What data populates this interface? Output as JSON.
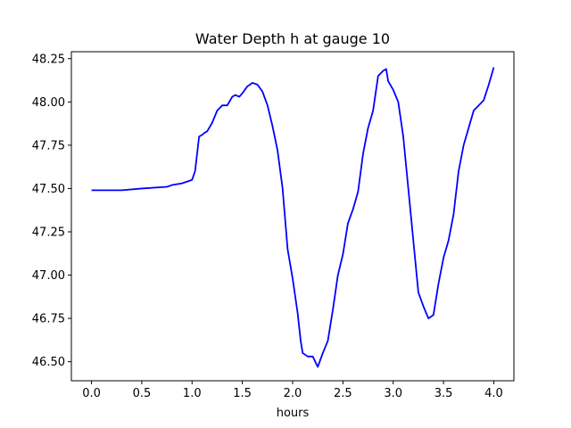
{
  "chart_data": {
    "type": "line",
    "title": "Water Depth h at gauge 10",
    "xlabel": "hours",
    "ylabel": "",
    "xlim": [
      -0.2,
      4.2
    ],
    "ylim": [
      46.39,
      48.29
    ],
    "xticks": [
      0.0,
      0.5,
      1.0,
      1.5,
      2.0,
      2.5,
      3.0,
      3.5,
      4.0
    ],
    "xtick_labels": [
      "0.0",
      "0.5",
      "1.0",
      "1.5",
      "2.0",
      "2.5",
      "3.0",
      "3.5",
      "4.0"
    ],
    "yticks": [
      46.5,
      46.75,
      47.0,
      47.25,
      47.5,
      47.75,
      48.0,
      48.25
    ],
    "ytick_labels": [
      "46.50",
      "46.75",
      "47.00",
      "47.25",
      "47.50",
      "47.75",
      "48.00",
      "48.25"
    ],
    "grid": false,
    "legend": "none",
    "series": [
      {
        "color": "#0000ff",
        "x": [
          0.0,
          0.3,
          0.5,
          0.75,
          0.8,
          0.9,
          1.0,
          1.03,
          1.05,
          1.07,
          1.1,
          1.12,
          1.15,
          1.2,
          1.25,
          1.3,
          1.35,
          1.4,
          1.43,
          1.47,
          1.5,
          1.55,
          1.6,
          1.65,
          1.7,
          1.75,
          1.8,
          1.85,
          1.9,
          1.95,
          2.0,
          2.05,
          2.08,
          2.1,
          2.15,
          2.2,
          2.25,
          2.3,
          2.35,
          2.4,
          2.45,
          2.5,
          2.55,
          2.6,
          2.65,
          2.7,
          2.75,
          2.8,
          2.85,
          2.9,
          2.93,
          2.95,
          3.0,
          3.05,
          3.1,
          3.15,
          3.2,
          3.25,
          3.3,
          3.35,
          3.4,
          3.45,
          3.5,
          3.55,
          3.6,
          3.65,
          3.7,
          3.75,
          3.8,
          3.85,
          3.9,
          3.95,
          4.0
        ],
        "y": [
          47.49,
          47.49,
          47.5,
          47.51,
          47.52,
          47.53,
          47.55,
          47.6,
          47.7,
          47.8,
          47.81,
          47.82,
          47.83,
          47.88,
          47.95,
          47.98,
          47.98,
          48.03,
          48.04,
          48.03,
          48.05,
          48.09,
          48.11,
          48.1,
          48.06,
          47.98,
          47.86,
          47.72,
          47.5,
          47.15,
          46.98,
          46.78,
          46.62,
          46.55,
          46.53,
          46.53,
          46.47,
          46.55,
          46.62,
          46.8,
          47.0,
          47.12,
          47.3,
          47.38,
          47.48,
          47.7,
          47.85,
          47.95,
          48.15,
          48.18,
          48.19,
          48.12,
          48.07,
          48.0,
          47.8,
          47.5,
          47.2,
          46.9,
          46.82,
          46.75,
          46.77,
          46.95,
          47.1,
          47.2,
          47.35,
          47.6,
          47.75,
          47.85,
          47.95,
          47.98,
          48.01,
          48.1,
          48.2
        ]
      }
    ]
  }
}
